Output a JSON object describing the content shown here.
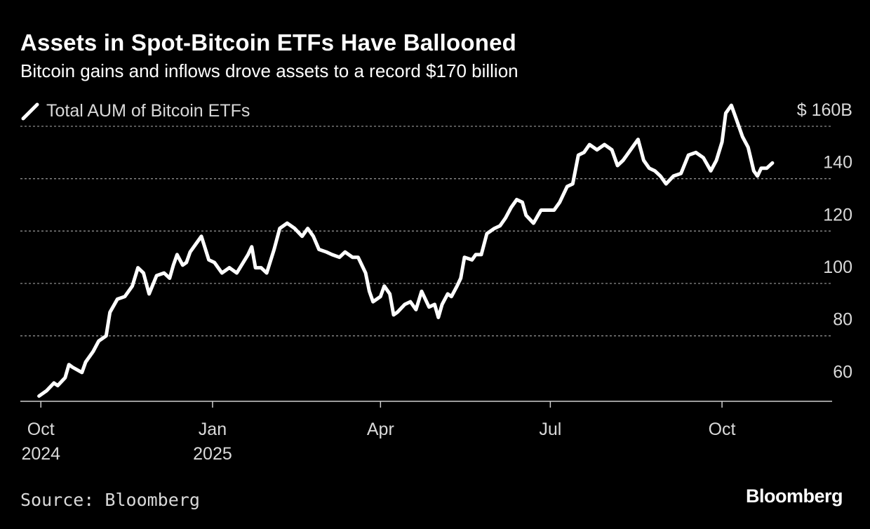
{
  "title": "Assets in Spot-Bitcoin ETFs Have Ballooned",
  "subtitle": "Bitcoin gains and inflows drove assets to a record $170 billion",
  "source": "Source: Bloomberg",
  "brand": "Bloomberg",
  "colors": {
    "background": "#000000",
    "line": "#ffffff",
    "grid": "#8c8c8c",
    "text_muted": "#d9d9d9"
  },
  "chart_data": {
    "type": "line",
    "title": "Assets in Spot-Bitcoin ETFs Have Ballooned",
    "subtitle": "Bitcoin gains and inflows drove assets to a record $170 billion",
    "xlabel": "",
    "ylabel": "",
    "ylim": [
      55,
      160
    ],
    "xlim": [
      "2024-09-20",
      "2025-11-29"
    ],
    "yticks": [
      60,
      80,
      100,
      120,
      140,
      160
    ],
    "ytick_labels": [
      "60",
      "80",
      "100",
      "120",
      "140",
      "$ 160B"
    ],
    "xticks": [
      {
        "date": "2024-10-01",
        "label_lines": [
          "Oct",
          "2024"
        ]
      },
      {
        "date": "2025-01-01",
        "label_lines": [
          "Jan",
          "2025"
        ]
      },
      {
        "date": "2025-04-01",
        "label_lines": [
          "Apr"
        ]
      },
      {
        "date": "2025-07-01",
        "label_lines": [
          "Jul"
        ]
      },
      {
        "date": "2025-10-01",
        "label_lines": [
          "Oct"
        ]
      }
    ],
    "grid": true,
    "legend_placement": "top-left",
    "series": [
      {
        "name": "Total AUM of Bitcoin ETFs",
        "points": [
          [
            "2024-09-30",
            57
          ],
          [
            "2024-10-04",
            59
          ],
          [
            "2024-10-08",
            62
          ],
          [
            "2024-10-10",
            61
          ],
          [
            "2024-10-14",
            64
          ],
          [
            "2024-10-16",
            69
          ],
          [
            "2024-10-18",
            68
          ],
          [
            "2024-10-23",
            66
          ],
          [
            "2024-10-25",
            70
          ],
          [
            "2024-10-29",
            74
          ],
          [
            "2024-11-01",
            78
          ],
          [
            "2024-11-05",
            80
          ],
          [
            "2024-11-07",
            89
          ],
          [
            "2024-11-11",
            94
          ],
          [
            "2024-11-15",
            95
          ],
          [
            "2024-11-19",
            99
          ],
          [
            "2024-11-22",
            106
          ],
          [
            "2024-11-25",
            104
          ],
          [
            "2024-11-28",
            96
          ],
          [
            "2024-12-02",
            103
          ],
          [
            "2024-12-06",
            104
          ],
          [
            "2024-12-09",
            102
          ],
          [
            "2024-12-11",
            107
          ],
          [
            "2024-12-13",
            111
          ],
          [
            "2024-12-16",
            107
          ],
          [
            "2024-12-18",
            108
          ],
          [
            "2024-12-20",
            112
          ],
          [
            "2024-12-23",
            115
          ],
          [
            "2024-12-26",
            118
          ],
          [
            "2024-12-30",
            109
          ],
          [
            "2025-01-02",
            108
          ],
          [
            "2025-01-06",
            104
          ],
          [
            "2025-01-10",
            106
          ],
          [
            "2025-01-14",
            104
          ],
          [
            "2025-01-20",
            111
          ],
          [
            "2025-01-22",
            114
          ],
          [
            "2025-01-24",
            106
          ],
          [
            "2025-01-27",
            106
          ],
          [
            "2025-01-30",
            104
          ],
          [
            "2025-02-03",
            113
          ],
          [
            "2025-02-06",
            121
          ],
          [
            "2025-02-10",
            123
          ],
          [
            "2025-02-14",
            121
          ],
          [
            "2025-02-18",
            118
          ],
          [
            "2025-02-21",
            121
          ],
          [
            "2025-02-24",
            118
          ],
          [
            "2025-02-27",
            113
          ],
          [
            "2025-03-03",
            112
          ],
          [
            "2025-03-06",
            111
          ],
          [
            "2025-03-10",
            110
          ],
          [
            "2025-03-13",
            112
          ],
          [
            "2025-03-17",
            110
          ],
          [
            "2025-03-20",
            110
          ],
          [
            "2025-03-24",
            104
          ],
          [
            "2025-03-26",
            97
          ],
          [
            "2025-03-28",
            93
          ],
          [
            "2025-04-01",
            95
          ],
          [
            "2025-04-03",
            99
          ],
          [
            "2025-04-06",
            96
          ],
          [
            "2025-04-08",
            88
          ],
          [
            "2025-04-10",
            89
          ],
          [
            "2025-04-14",
            92
          ],
          [
            "2025-04-17",
            93
          ],
          [
            "2025-04-20",
            90
          ],
          [
            "2025-04-23",
            97
          ],
          [
            "2025-04-27",
            91
          ],
          [
            "2025-04-30",
            92
          ],
          [
            "2025-05-02",
            87
          ],
          [
            "2025-05-04",
            92
          ],
          [
            "2025-05-07",
            96
          ],
          [
            "2025-05-09",
            95
          ],
          [
            "2025-05-12",
            99
          ],
          [
            "2025-05-14",
            102
          ],
          [
            "2025-05-16",
            110
          ],
          [
            "2025-05-20",
            109
          ],
          [
            "2025-05-22",
            111
          ],
          [
            "2025-05-25",
            111
          ],
          [
            "2025-05-28",
            119
          ],
          [
            "2025-06-01",
            121
          ],
          [
            "2025-06-04",
            122
          ],
          [
            "2025-06-07",
            125
          ],
          [
            "2025-06-10",
            129
          ],
          [
            "2025-06-13",
            132
          ],
          [
            "2025-06-16",
            131
          ],
          [
            "2025-06-18",
            126
          ],
          [
            "2025-06-22",
            123
          ],
          [
            "2025-06-26",
            128
          ],
          [
            "2025-06-30",
            128
          ],
          [
            "2025-07-03",
            128
          ],
          [
            "2025-07-06",
            131
          ],
          [
            "2025-07-10",
            137
          ],
          [
            "2025-07-13",
            138
          ],
          [
            "2025-07-16",
            149
          ],
          [
            "2025-07-19",
            150
          ],
          [
            "2025-07-22",
            153
          ],
          [
            "2025-07-26",
            151
          ],
          [
            "2025-07-30",
            153
          ],
          [
            "2025-08-03",
            151
          ],
          [
            "2025-08-06",
            145
          ],
          [
            "2025-08-09",
            147
          ],
          [
            "2025-08-12",
            150
          ],
          [
            "2025-08-15",
            153
          ],
          [
            "2025-08-17",
            155
          ],
          [
            "2025-08-20",
            147
          ],
          [
            "2025-08-23",
            144
          ],
          [
            "2025-08-26",
            143
          ],
          [
            "2025-08-29",
            141
          ],
          [
            "2025-09-01",
            138
          ],
          [
            "2025-09-05",
            141
          ],
          [
            "2025-09-09",
            142
          ],
          [
            "2025-09-13",
            149
          ],
          [
            "2025-09-17",
            150
          ],
          [
            "2025-09-21",
            148
          ],
          [
            "2025-09-25",
            143
          ],
          [
            "2025-09-28",
            147
          ],
          [
            "2025-10-01",
            154
          ],
          [
            "2025-10-03",
            165
          ],
          [
            "2025-10-06",
            168
          ],
          [
            "2025-10-09",
            162
          ],
          [
            "2025-10-12",
            156
          ],
          [
            "2025-10-15",
            152
          ],
          [
            "2025-10-18",
            143
          ],
          [
            "2025-10-20",
            141
          ],
          [
            "2025-10-22",
            144
          ],
          [
            "2025-10-25",
            144
          ],
          [
            "2025-10-28",
            146
          ]
        ]
      }
    ]
  }
}
